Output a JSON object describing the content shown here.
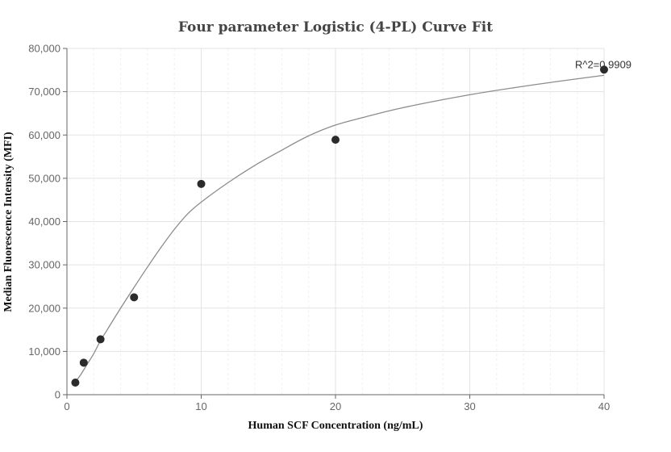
{
  "chart_data": {
    "type": "scatter",
    "title": "Four parameter Logistic (4-PL) Curve Fit",
    "xlabel": "Human SCF Concentration (ng/mL)",
    "ylabel": "Median Fluorescence Intensity (MFI)",
    "xlim": [
      0,
      40
    ],
    "ylim": [
      0,
      80000
    ],
    "x_ticks": [
      0,
      10,
      20,
      30,
      40
    ],
    "y_ticks": [
      0,
      10000,
      20000,
      30000,
      40000,
      50000,
      60000,
      70000,
      80000
    ],
    "x_tick_labels": [
      "0",
      "10",
      "20",
      "30",
      "40"
    ],
    "y_tick_labels": [
      "0",
      "10,000",
      "20,000",
      "30,000",
      "40,000",
      "50,000",
      "60,000",
      "70,000",
      "80,000"
    ],
    "grid": true,
    "series": [
      {
        "values": [
          {
            "x": 0.625,
            "y": 2800
          },
          {
            "x": 1.25,
            "y": 7400
          },
          {
            "x": 2.5,
            "y": 12800
          },
          {
            "x": 5,
            "y": 22500
          },
          {
            "x": 10,
            "y": 48700
          },
          {
            "x": 20,
            "y": 58900
          },
          {
            "x": 40,
            "y": 75100
          }
        ]
      }
    ],
    "fit_curve": {
      "x": [
        0.625,
        1,
        1.5,
        2,
        2.5,
        3,
        4,
        5,
        6,
        7,
        8,
        9,
        10,
        12,
        14,
        16,
        18,
        20,
        22,
        25,
        30,
        35,
        40
      ],
      "y": [
        3000,
        4500,
        7000,
        9500,
        12500,
        15000,
        20000,
        24800,
        29500,
        34000,
        38200,
        41800,
        44500,
        49000,
        53000,
        56500,
        59800,
        62300,
        64000,
        66300,
        69300,
        71700,
        73800
      ]
    },
    "annotation": {
      "text": "R^2=0.9909",
      "x": 40,
      "y": 75100
    }
  }
}
